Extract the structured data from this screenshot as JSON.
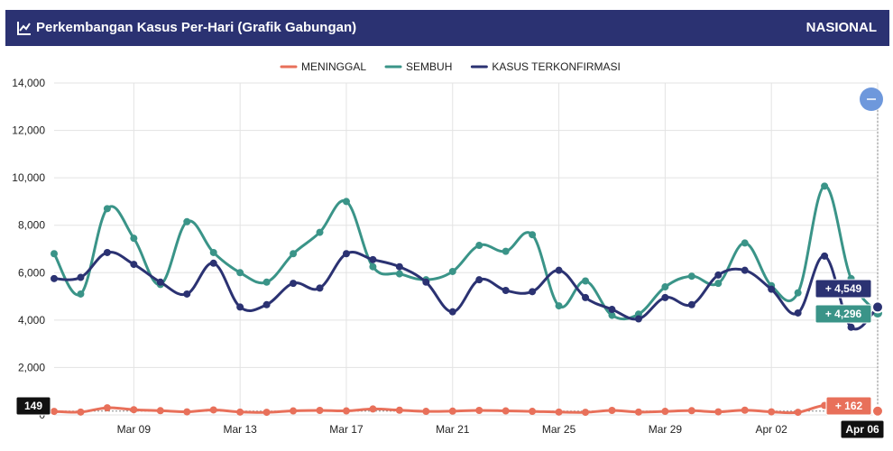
{
  "header": {
    "title": "Perkembangan Kasus Per-Hari (Grafik Gabungan)",
    "region": "NASIONAL",
    "icon": "line-chart-icon"
  },
  "chart_data": {
    "type": "line",
    "x_start": "Mar 06",
    "x": [
      "Mar 06",
      "Mar 07",
      "Mar 08",
      "Mar 09",
      "Mar 10",
      "Mar 11",
      "Mar 12",
      "Mar 13",
      "Mar 14",
      "Mar 15",
      "Mar 16",
      "Mar 17",
      "Mar 18",
      "Mar 19",
      "Mar 20",
      "Mar 21",
      "Mar 22",
      "Mar 23",
      "Mar 24",
      "Mar 25",
      "Mar 26",
      "Mar 27",
      "Mar 28",
      "Mar 29",
      "Mar 30",
      "Mar 31",
      "Apr 01",
      "Apr 02",
      "Apr 03",
      "Apr 04",
      "Apr 05",
      "Apr 06"
    ],
    "x_tick_labels": [
      "Mar 09",
      "Mar 13",
      "Mar 17",
      "Mar 21",
      "Mar 25",
      "Mar 29",
      "Apr 02",
      "Apr 06"
    ],
    "ylim": [
      0,
      14000
    ],
    "y_ticks": [
      "0",
      "2,000",
      "4,000",
      "6,000",
      "8,000",
      "10,000",
      "12,000",
      "14,000"
    ],
    "grid": true,
    "legend_position": "top-center",
    "series": [
      {
        "name": "MENINGGAL",
        "color": "#e8705a",
        "values": [
          149,
          120,
          300,
          220,
          180,
          130,
          210,
          120,
          110,
          170,
          190,
          170,
          250,
          200,
          150,
          160,
          190,
          170,
          150,
          120,
          110,
          190,
          120,
          150,
          180,
          130,
          200,
          130,
          110,
          400,
          300,
          162
        ]
      },
      {
        "name": "SEMBUH",
        "color": "#3a9488",
        "values": [
          6800,
          5100,
          8700,
          7450,
          5500,
          8150,
          6850,
          6000,
          5600,
          6800,
          7700,
          9000,
          6250,
          5950,
          5700,
          6050,
          7150,
          6900,
          7600,
          4600,
          5650,
          4200,
          4250,
          5400,
          5850,
          5550,
          7250,
          5450,
          5150,
          9650,
          5750,
          4296
        ]
      },
      {
        "name": "KASUS TERKONFIRMASI",
        "color": "#2b3272",
        "values": [
          5750,
          5800,
          6850,
          6350,
          5600,
          5100,
          6400,
          4550,
          4650,
          5550,
          5350,
          6800,
          6550,
          6250,
          5600,
          4350,
          5700,
          5250,
          5200,
          6100,
          4950,
          4450,
          4050,
          4950,
          4650,
          5900,
          6100,
          5300,
          4300,
          6700,
          3700,
          4549
        ]
      }
    ],
    "tooltips": {
      "confirmed": "+ 4,549",
      "recovered": "+ 4,296",
      "deaths": "+ 162",
      "y_value": "149",
      "x_value": "Apr 06"
    },
    "zoom_out_icon": "minus-icon"
  }
}
